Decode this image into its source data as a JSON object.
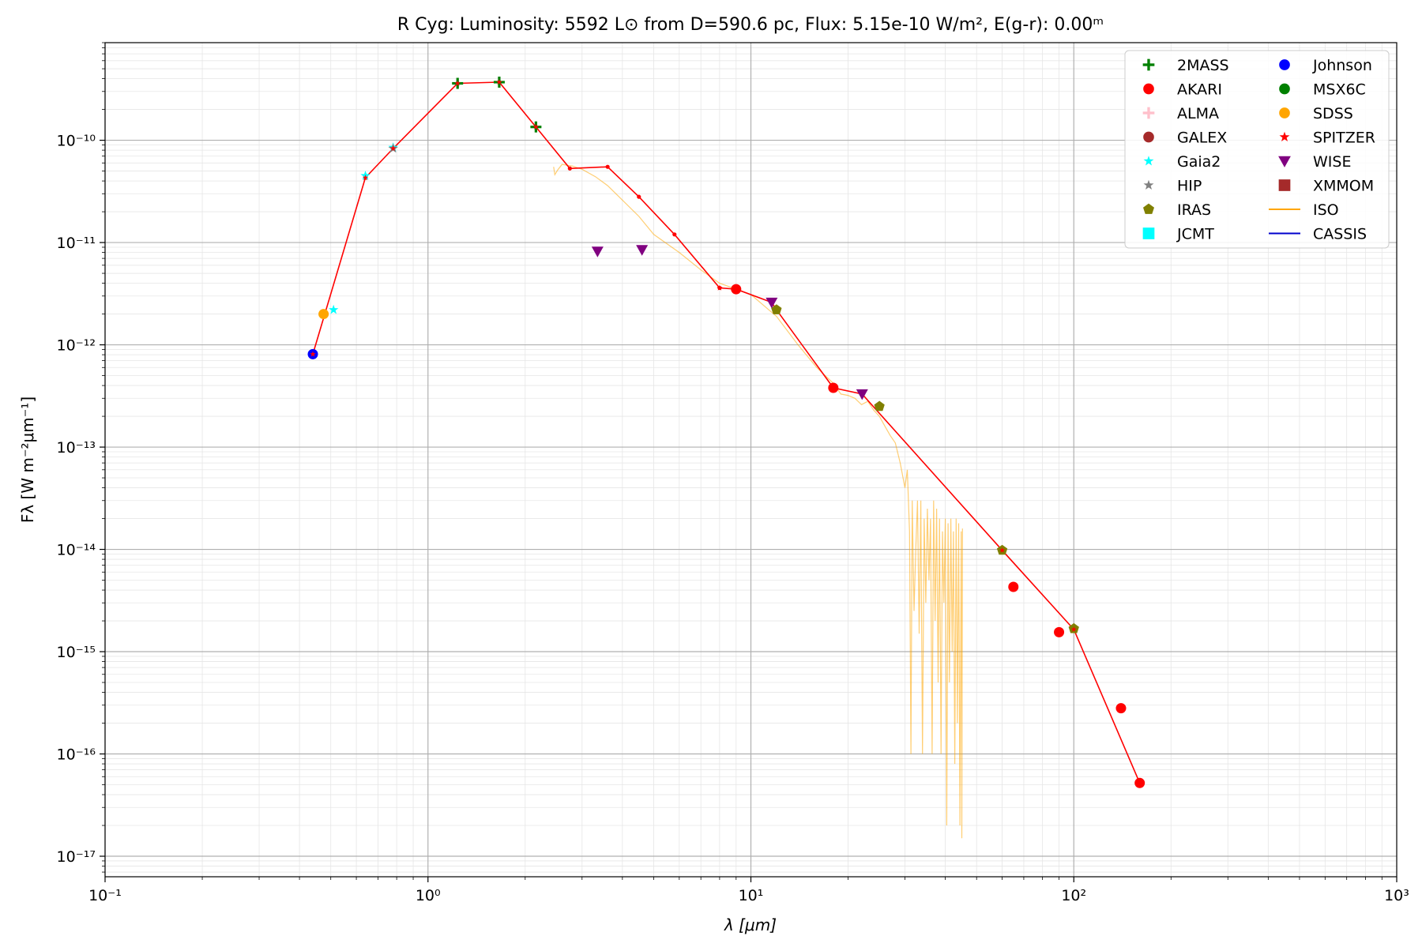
{
  "chart_data": {
    "type": "scatter",
    "title": "R Cyg:  Luminosity: 5592 L⊙ from D=590.6 pc, Flux: 5.15e-10 W/m², E(g-r): 0.00ᵐ",
    "xlabel": "λ [μm]",
    "ylabel": "Fλ [W m⁻²μm⁻¹]",
    "xscale": "log",
    "yscale": "log",
    "xlim": [
      0.1,
      1000
    ],
    "ylim": [
      6.3e-18,
      9e-10
    ],
    "x_ticks": [
      {
        "value": 0.1,
        "label": "10⁻¹"
      },
      {
        "value": 1,
        "label": "10⁰"
      },
      {
        "value": 10,
        "label": "10¹"
      },
      {
        "value": 100,
        "label": "10²"
      },
      {
        "value": 1000,
        "label": "10³"
      }
    ],
    "y_ticks": [
      {
        "value": 1e-10,
        "label": "10⁻¹⁰"
      },
      {
        "value": 1e-11,
        "label": "10⁻¹¹"
      },
      {
        "value": 1e-12,
        "label": "10⁻¹²"
      },
      {
        "value": 1e-13,
        "label": "10⁻¹³"
      },
      {
        "value": 1e-14,
        "label": "10⁻¹⁴"
      },
      {
        "value": 1e-15,
        "label": "10⁻¹⁵"
      },
      {
        "value": 1e-16,
        "label": "10⁻¹⁶"
      },
      {
        "value": 1e-17,
        "label": "10⁻¹⁷"
      }
    ],
    "grid": true,
    "legend_position": "top-right",
    "legend_columns": 2,
    "legend": [
      {
        "name": "2MASS",
        "marker": "plus",
        "color": "#008000"
      },
      {
        "name": "AKARI",
        "marker": "circle",
        "color": "#ff0000"
      },
      {
        "name": "ALMA",
        "marker": "plus",
        "color": "#ffc0cb"
      },
      {
        "name": "GALEX",
        "marker": "circle",
        "color": "#a52a2a"
      },
      {
        "name": "Gaia2",
        "marker": "star",
        "color": "#00ffff"
      },
      {
        "name": "HIP",
        "marker": "star",
        "color": "#808080"
      },
      {
        "name": "IRAS",
        "marker": "pentagon",
        "color": "#808000"
      },
      {
        "name": "JCMT",
        "marker": "square",
        "color": "#00ffff"
      },
      {
        "name": "Johnson",
        "marker": "circle",
        "color": "#0000ff"
      },
      {
        "name": "MSX6C",
        "marker": "circle",
        "color": "#008000"
      },
      {
        "name": "SDSS",
        "marker": "circle",
        "color": "#ffa500"
      },
      {
        "name": "SPITZER",
        "marker": "star",
        "color": "#ff0000"
      },
      {
        "name": "WISE",
        "marker": "triangle_down",
        "color": "#800080"
      },
      {
        "name": "XMMOM",
        "marker": "square",
        "color": "#a52a2a"
      },
      {
        "name": "ISO",
        "marker": "line",
        "color": "#ffa500"
      },
      {
        "name": "CASSIS",
        "marker": "line",
        "color": "#0000cc"
      }
    ],
    "series": [
      {
        "name": "2MASS",
        "marker": "plus",
        "color": "#008000",
        "points": [
          [
            1.235,
            3.6e-10
          ],
          [
            1.662,
            3.7e-10
          ],
          [
            2.159,
            1.35e-10
          ]
        ]
      },
      {
        "name": "AKARI",
        "marker": "circle",
        "color": "#ff0000",
        "points": [
          [
            9.0,
            3.5e-12
          ],
          [
            18.0,
            3.8e-13
          ],
          [
            65.0,
            4.3e-15
          ],
          [
            90.0,
            1.55e-15
          ],
          [
            140.0,
            2.8e-16
          ],
          [
            160.0,
            5.2e-17
          ]
        ]
      },
      {
        "name": "Gaia2",
        "marker": "star",
        "color": "#00ffff",
        "points": [
          [
            0.51,
            2.2e-12
          ],
          [
            0.64,
            4.5e-11
          ],
          [
            0.78,
            8.5e-11
          ]
        ]
      },
      {
        "name": "HIP",
        "marker": "star",
        "color": "#808080",
        "points": [
          [
            0.78,
            8.3e-11
          ]
        ]
      },
      {
        "name": "IRAS",
        "marker": "pentagon",
        "color": "#808000",
        "points": [
          [
            12.0,
            2.2e-12
          ],
          [
            25.0,
            2.5e-13
          ],
          [
            60.0,
            9.8e-15
          ],
          [
            100.0,
            1.68e-15
          ]
        ]
      },
      {
        "name": "Johnson",
        "marker": "circle",
        "color": "#0000ff",
        "points": [
          [
            0.44,
            8.1e-13
          ]
        ]
      },
      {
        "name": "SDSS",
        "marker": "circle",
        "color": "#ffa500",
        "points": [
          [
            0.475,
            2e-12
          ]
        ]
      },
      {
        "name": "SPITZER",
        "marker": "star",
        "color": "#ff0000",
        "points": [
          [
            0.44,
            8.1e-13
          ],
          [
            0.64,
            4.3e-11
          ],
          [
            0.78,
            8.3e-11
          ],
          [
            1.235,
            3.6e-10
          ],
          [
            1.662,
            3.7e-10
          ],
          [
            2.159,
            1.35e-10
          ],
          [
            8.0,
            3.6e-12
          ],
          [
            60.0,
            9.8e-15
          ],
          [
            100.0,
            1.65e-15
          ]
        ]
      },
      {
        "name": "WISE",
        "marker": "triangle_down",
        "color": "#800080",
        "points": [
          [
            3.35,
            8.2e-12
          ],
          [
            4.6,
            8.5e-12
          ],
          [
            11.6,
            2.6e-12
          ],
          [
            22.1,
            3.3e-13
          ]
        ]
      }
    ],
    "sed_line": {
      "color": "#ff0000",
      "points": [
        [
          0.44,
          8.1e-13
        ],
        [
          0.64,
          4.3e-11
        ],
        [
          0.78,
          8.3e-11
        ],
        [
          1.235,
          3.6e-10
        ],
        [
          1.662,
          3.7e-10
        ],
        [
          2.159,
          1.35e-10
        ],
        [
          2.75,
          5.3e-11
        ],
        [
          3.6,
          5.5e-11
        ],
        [
          4.5,
          2.8e-11
        ],
        [
          5.8,
          1.2e-11
        ],
        [
          8.0,
          3.6e-12
        ],
        [
          9.0,
          3.5e-12
        ],
        [
          11.6,
          2.6e-12
        ],
        [
          12.0,
          2.2e-12
        ],
        [
          18.0,
          3.8e-13
        ],
        [
          22.1,
          3.3e-13
        ],
        [
          60.0,
          9.8e-15
        ],
        [
          100.0,
          1.65e-15
        ],
        [
          160.0,
          5.2e-17
        ]
      ]
    },
    "iso_spectrum": {
      "name": "ISO",
      "color": "#ffa500",
      "points": [
        [
          2.45,
          5.5e-11
        ],
        [
          2.47,
          4.6e-11
        ],
        [
          2.52,
          5.1e-11
        ],
        [
          2.6,
          5.8e-11
        ],
        [
          2.8,
          5.6e-11
        ],
        [
          3.0,
          5.2e-11
        ],
        [
          3.3,
          4.4e-11
        ],
        [
          3.6,
          3.6e-11
        ],
        [
          4.0,
          2.6e-11
        ],
        [
          4.5,
          1.8e-11
        ],
        [
          5.0,
          1.2e-11
        ],
        [
          6.0,
          8e-12
        ],
        [
          7.0,
          5.4e-12
        ],
        [
          8.0,
          4e-12
        ],
        [
          9.0,
          3.5e-12
        ],
        [
          10.0,
          3.1e-12
        ],
        [
          11.0,
          2.4e-12
        ],
        [
          12.0,
          1.9e-12
        ],
        [
          14.0,
          1e-12
        ],
        [
          16.0,
          6e-13
        ],
        [
          18.0,
          4.2e-13
        ],
        [
          19.0,
          3.3e-13
        ],
        [
          20.0,
          3.2e-13
        ],
        [
          21.0,
          3e-13
        ],
        [
          22.0,
          2.6e-13
        ],
        [
          23.0,
          2.8e-13
        ],
        [
          24.0,
          2.3e-13
        ],
        [
          25.0,
          2e-13
        ],
        [
          26.0,
          1.6e-13
        ],
        [
          27.0,
          1.3e-13
        ],
        [
          28.0,
          1.1e-13
        ],
        [
          29.0,
          7e-14
        ],
        [
          30.0,
          4e-14
        ],
        [
          30.5,
          6e-14
        ],
        [
          31.0,
          1.5e-14
        ],
        [
          31.3,
          1e-16
        ],
        [
          31.6,
          3e-14
        ],
        [
          32.0,
          2.5e-15
        ],
        [
          32.4,
          1e-14
        ],
        [
          32.8,
          3e-14
        ],
        [
          33.2,
          1.5e-15
        ],
        [
          33.6,
          3e-14
        ],
        [
          34.0,
          1e-16
        ],
        [
          34.4,
          2e-14
        ],
        [
          34.8,
          3e-15
        ],
        [
          35.2,
          2.5e-14
        ],
        [
          35.6,
          5e-15
        ],
        [
          36.0,
          2e-14
        ],
        [
          36.4,
          1e-16
        ],
        [
          36.8,
          3e-14
        ],
        [
          37.2,
          2e-15
        ],
        [
          37.6,
          2.5e-14
        ],
        [
          38.0,
          5e-16
        ],
        [
          38.4,
          2e-14
        ],
        [
          38.8,
          1e-16
        ],
        [
          39.2,
          1.5e-14
        ],
        [
          39.6,
          3e-15
        ],
        [
          40.0,
          2e-14
        ],
        [
          40.4,
          2e-17
        ],
        [
          40.8,
          1.8e-14
        ],
        [
          41.2,
          5e-16
        ],
        [
          41.6,
          2e-14
        ],
        [
          42.0,
          1e-15
        ],
        [
          42.4,
          1.5e-14
        ],
        [
          42.8,
          8e-17
        ],
        [
          43.2,
          2e-14
        ],
        [
          43.6,
          2e-16
        ],
        [
          44.0,
          1.8e-14
        ],
        [
          44.4,
          2e-17
        ],
        [
          44.8,
          1.5e-14
        ],
        [
          45.0,
          1.5e-17
        ],
        [
          45.2,
          1.6e-14
        ]
      ]
    }
  }
}
